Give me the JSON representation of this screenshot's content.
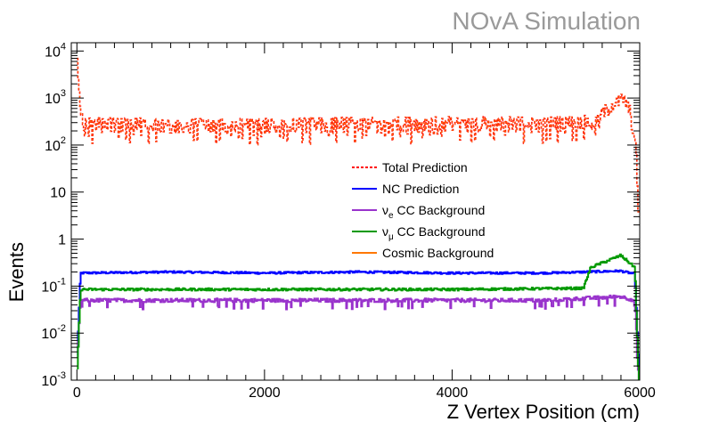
{
  "watermark": "NOvA Simulation",
  "chart_data": {
    "type": "line",
    "title": "",
    "xlabel": "Z Vertex Position (cm)",
    "ylabel": "Events",
    "xlim": [
      -60,
      6000
    ],
    "ylim": [
      0.001,
      15000
    ],
    "yscale": "log",
    "x_ticks": [
      0,
      2000,
      4000,
      6000
    ],
    "y_ticks": [
      {
        "value": 0.001,
        "base": "10",
        "exp": "-3"
      },
      {
        "value": 0.01,
        "base": "10",
        "exp": "-2"
      },
      {
        "value": 0.1,
        "base": "10",
        "exp": "-1"
      },
      {
        "value": 1,
        "base": "1",
        "exp": ""
      },
      {
        "value": 10,
        "base": "10",
        "exp": ""
      },
      {
        "value": 100,
        "base": "10",
        "exp": "2"
      },
      {
        "value": 1000,
        "base": "10",
        "exp": "3"
      },
      {
        "value": 10000,
        "base": "10",
        "exp": "4"
      }
    ],
    "grid": false,
    "legend_position": "center",
    "series": [
      {
        "name": "Total Prediction",
        "name_main": "Total Prediction",
        "name_sub": "",
        "name_suffix": "",
        "color": "#ff0000",
        "style": "dotted",
        "level": 280,
        "spread": 0.35,
        "edge": "total",
        "points": [
          [
            0,
            8000
          ],
          [
            30,
            1000
          ],
          [
            60,
            280
          ],
          [
            500,
            290
          ],
          [
            1000,
            270
          ],
          [
            2000,
            280
          ],
          [
            3000,
            290
          ],
          [
            4000,
            300
          ],
          [
            5000,
            300
          ],
          [
            5500,
            320
          ],
          [
            5700,
            700
          ],
          [
            5830,
            1000
          ],
          [
            5900,
            500
          ],
          [
            5960,
            80
          ],
          [
            5990,
            3
          ]
        ]
      },
      {
        "name": "NC Prediction",
        "name_main": "NC Prediction",
        "name_sub": "",
        "name_suffix": "",
        "color": "#0000ff",
        "style": "solid",
        "level": 0.19,
        "spread": 0.05,
        "edge": "nc",
        "points": [
          [
            0,
            0.002
          ],
          [
            40,
            0.19
          ],
          [
            1000,
            0.2
          ],
          [
            2000,
            0.19
          ],
          [
            3000,
            0.2
          ],
          [
            4000,
            0.19
          ],
          [
            5000,
            0.19
          ],
          [
            5800,
            0.21
          ],
          [
            5950,
            0.18
          ],
          [
            5990,
            0.002
          ]
        ]
      },
      {
        "name": "ν_e CC Background",
        "name_main": "ν",
        "name_sub": "e",
        "name_suffix": " CC Background",
        "color": "#9933cc",
        "style": "solid",
        "level": 0.05,
        "spread": 0.09,
        "edge": "nue",
        "points": [
          [
            0,
            0.002
          ],
          [
            40,
            0.05
          ],
          [
            1000,
            0.05
          ],
          [
            2000,
            0.05
          ],
          [
            3000,
            0.05
          ],
          [
            4000,
            0.05
          ],
          [
            5000,
            0.05
          ],
          [
            5800,
            0.06
          ],
          [
            5950,
            0.05
          ],
          [
            5990,
            0.001
          ]
        ]
      },
      {
        "name": "ν_μ CC Background",
        "name_main": "ν",
        "name_sub": "μ",
        "name_suffix": " CC Background",
        "color": "#009900",
        "style": "solid",
        "level": 0.085,
        "spread": 0.06,
        "edge": "numu",
        "points": [
          [
            0,
            0.001
          ],
          [
            40,
            0.085
          ],
          [
            1000,
            0.085
          ],
          [
            2000,
            0.085
          ],
          [
            3000,
            0.085
          ],
          [
            4000,
            0.085
          ],
          [
            5400,
            0.09
          ],
          [
            5480,
            0.25
          ],
          [
            5800,
            0.45
          ],
          [
            5950,
            0.25
          ],
          [
            5990,
            0.001
          ]
        ]
      },
      {
        "name": "Cosmic Background",
        "name_main": "Cosmic Background",
        "name_sub": "",
        "name_suffix": "",
        "color": "#ff7700",
        "style": "solid",
        "level": 0,
        "spread": 0,
        "edge": "none",
        "points": []
      }
    ]
  }
}
